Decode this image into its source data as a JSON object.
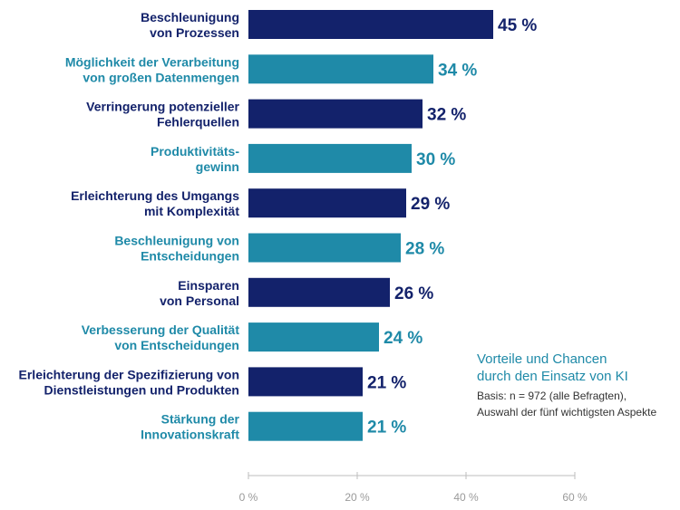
{
  "chart_data": {
    "type": "bar",
    "orientation": "horizontal",
    "categories": [
      [
        "Beschleunigung",
        "von Prozessen"
      ],
      [
        "Möglichkeit der Verarbeitung",
        "von großen Datenmengen"
      ],
      [
        "Verringerung potenzieller",
        "Fehlerquellen"
      ],
      [
        "Produktivitäts-",
        "gewinn"
      ],
      [
        "Erleichterung des Umgangs",
        "mit Komplexität"
      ],
      [
        "Beschleunigung von",
        "Entscheidungen"
      ],
      [
        "Einsparen",
        "von Personal"
      ],
      [
        "Verbesserung der Qualität",
        "von Entscheidungen"
      ],
      [
        "Erleichterung der Spezifizierung von",
        "Dienstleistungen und Produkten"
      ],
      [
        "Stärkung der",
        "Innovationskraft"
      ]
    ],
    "values": [
      45,
      34,
      32,
      30,
      29,
      28,
      26,
      24,
      21,
      21
    ],
    "value_labels": [
      "45 %",
      "34 %",
      "32 %",
      "30 %",
      "29 %",
      "28 %",
      "26 %",
      "24 %",
      "21 %",
      "21 %"
    ],
    "xlim": [
      0,
      60
    ],
    "xticks": [
      0,
      20,
      40,
      60
    ],
    "xtick_labels": [
      "0 %",
      "20 %",
      "40 %",
      "60 %"
    ],
    "colors": [
      "#13226b",
      "#1f8aa8"
    ],
    "axis_color": "#bdbdbd",
    "tick_text_color": "#9a9a9a",
    "legend": {
      "title_lines": [
        "Vorteile und Chancen",
        "durch den Einsatz von KI"
      ],
      "note_lines": [
        "Basis: n = 972 (alle Befragten),",
        "Auswahl der fünf wichtigsten Aspekte"
      ],
      "title_color": "#1f8aa8",
      "placement": "bottom-right"
    }
  }
}
